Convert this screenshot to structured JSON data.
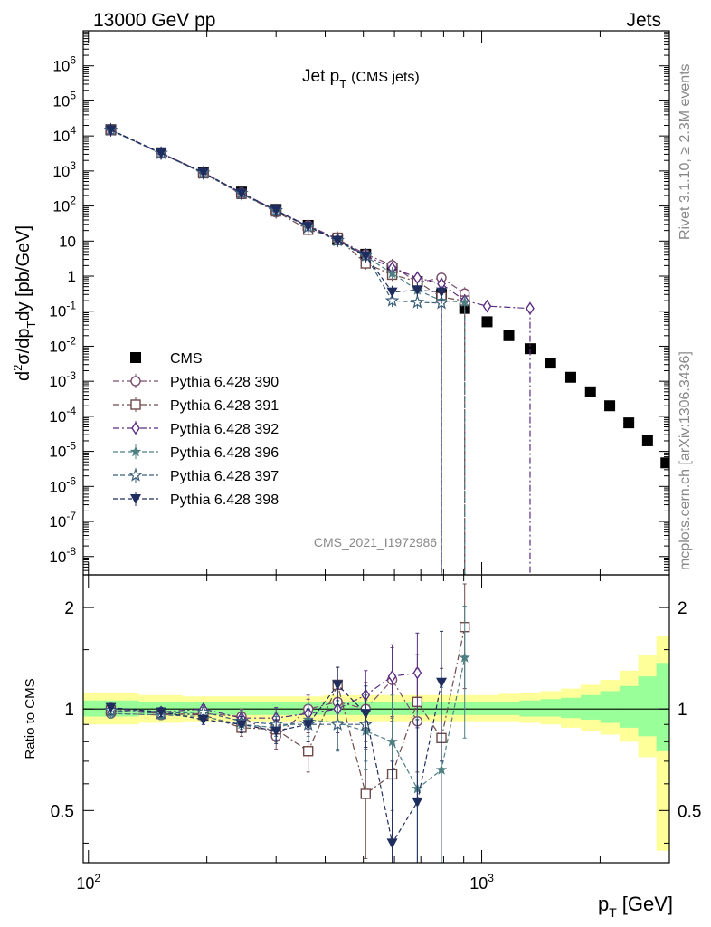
{
  "header": {
    "left": "13000 GeV pp",
    "right": "Jets"
  },
  "side_text": {
    "rivet": "Rivet 3.1.10, ≥ 2.3M events",
    "site": "mcplots.cern.ch [arXiv:1306.3436]"
  },
  "watermark": "CMS_2021_I1972986",
  "chart_data": [
    {
      "type": "scatter",
      "title": "Jet pT (CMS jets)",
      "title_main": "Jet p",
      "title_sub": "T",
      "title_tail": "(CMS jets)",
      "ylabel": "d²σ/dpTdy [pb/GeV]",
      "ylabel_parts": [
        "d",
        "2",
        "σ/dp",
        "T",
        "dy [pb/GeV]"
      ],
      "xlabel": "pT [GeV]",
      "xlabel_parts": [
        "p",
        "T",
        "[GeV]"
      ],
      "xscale": "log",
      "yscale": "log",
      "xlim": [
        97,
        3000
      ],
      "ylim": [
        3e-09,
        10000000.0
      ],
      "y_tick_labels": [
        {
          "v": 1000000.0,
          "base": "10",
          "exp": "6"
        },
        {
          "v": 100000.0,
          "base": "10",
          "exp": "5"
        },
        {
          "v": 10000.0,
          "base": "10",
          "exp": "4"
        },
        {
          "v": 1000.0,
          "base": "10",
          "exp": "3"
        },
        {
          "v": 100.0,
          "base": "10",
          "exp": "2"
        },
        {
          "v": 10,
          "base": "10",
          "exp": ""
        },
        {
          "v": 1,
          "base": "1",
          "exp": ""
        },
        {
          "v": 0.1,
          "base": "10",
          "exp": "-1"
        },
        {
          "v": 0.01,
          "base": "10",
          "exp": "-2"
        },
        {
          "v": 0.001,
          "base": "10",
          "exp": "-3"
        },
        {
          "v": 0.0001,
          "base": "10",
          "exp": "-4"
        },
        {
          "v": 1e-05,
          "base": "10",
          "exp": "-5"
        },
        {
          "v": 1e-06,
          "base": "10",
          "exp": "-6"
        },
        {
          "v": 1e-07,
          "base": "10",
          "exp": "-7"
        },
        {
          "v": 1e-08,
          "base": "10",
          "exp": "-8"
        }
      ],
      "legend_position": "bottom-left",
      "series": [
        {
          "name": "CMS",
          "color": "#000000",
          "marker": "square-filled",
          "x": [
            114,
            153,
            196,
            245,
            300,
            362,
            430,
            507,
            592,
            686,
            790,
            905,
            1032,
            1172,
            1327,
            1497,
            1684,
            1890,
            2116,
            2366,
            2640,
            2941
          ],
          "y": [
            15000,
            3300,
            900,
            250,
            80,
            28,
            11,
            4.2,
            1.7,
            0.7,
            0.3,
            0.12,
            0.05,
            0.02,
            0.0085,
            0.0033,
            0.0013,
            0.0005,
            0.0002,
            6.5e-05,
            2e-05,
            4.7e-06
          ]
        },
        {
          "name": "Pythia 6.428 390",
          "color": "#7a4f6d",
          "marker": "circle-open",
          "dash": "7,3,2,3",
          "x": [
            114,
            153,
            196,
            245,
            300,
            362,
            430,
            507,
            592,
            686,
            790,
            905
          ],
          "y": [
            14500,
            3150,
            880,
            240,
            66,
            28,
            11.5,
            4.2,
            2.05,
            0.65,
            0.9,
            0.32
          ]
        },
        {
          "name": "Pythia 6.428 391",
          "color": "#6e4a4a",
          "marker": "square-open",
          "dash": "7,3,2,3",
          "x": [
            114,
            153,
            196,
            245,
            300,
            362,
            430,
            507,
            592,
            686,
            790,
            905
          ],
          "y": [
            14800,
            3200,
            860,
            220,
            70,
            21,
            12.5,
            2.3,
            1.1,
            0.7,
            0.25,
            0.2
          ]
        },
        {
          "name": "Pythia 6.428 392",
          "color": "#5a2d82",
          "marker": "diamond-open",
          "dash": "7,3,2,3",
          "x": [
            114,
            153,
            196,
            245,
            300,
            362,
            430,
            507,
            592,
            686,
            790,
            905,
            1032,
            1327
          ],
          "y": [
            15000,
            3250,
            900,
            235,
            75,
            27,
            11,
            3.8,
            1.7,
            0.9,
            0.6,
            0.2,
            0.14,
            0.12
          ]
        },
        {
          "name": "Pythia 6.428 396",
          "color": "#4e7f82",
          "marker": "star-filled",
          "dash": "5,3",
          "x": [
            114,
            153,
            196,
            245,
            300,
            362,
            430,
            507,
            592,
            686,
            790,
            905
          ],
          "y": [
            14600,
            3150,
            860,
            225,
            72,
            26,
            10,
            3.6,
            1.2,
            0.4,
            0.2,
            0.18
          ]
        },
        {
          "name": "Pythia 6.428 397",
          "color": "#3b5f7a",
          "marker": "star-open",
          "dash": "5,3",
          "x": [
            114,
            153,
            196,
            245,
            300,
            362,
            430,
            507,
            592,
            686,
            790
          ],
          "y": [
            14800,
            3200,
            880,
            230,
            74,
            25,
            10.5,
            3.9,
            0.2,
            0.18,
            0.17
          ]
        },
        {
          "name": "Pythia 6.428 398",
          "color": "#1f2d5e",
          "marker": "triangle-down-filled",
          "dash": "5,3",
          "x": [
            114,
            153,
            196,
            245,
            300,
            362,
            430,
            507,
            592,
            686,
            790
          ],
          "y": [
            15000,
            3250,
            900,
            235,
            76,
            26,
            10.5,
            3.8,
            0.35,
            0.4,
            0.35
          ]
        }
      ]
    },
    {
      "type": "scatter",
      "ylabel": "Ratio to CMS",
      "xscale": "log",
      "yscale": "log",
      "xlim": [
        97,
        3000
      ],
      "ylim": [
        0.35,
        2.5
      ],
      "y_ticks": [
        0.5,
        1,
        2
      ],
      "y_tick_labels": [
        "0.5",
        "1",
        "2"
      ],
      "x_ticks": [
        100,
        1000
      ],
      "x_tick_labels": [
        {
          "base": "10",
          "exp": "2"
        },
        {
          "base": "10",
          "exp": "3"
        }
      ],
      "uncertainty_band": {
        "x_edges": [
          97,
          134,
          173,
          218,
          270,
          330,
          395,
          467,
          548,
          638,
          738,
          846,
          966,
          1100,
          1248,
          1410,
          1590,
          1786,
          2002,
          2240,
          2500,
          2780,
          3000
        ],
        "outer_low": [
          0.9,
          0.91,
          0.92,
          0.92,
          0.92,
          0.92,
          0.92,
          0.92,
          0.92,
          0.92,
          0.92,
          0.92,
          0.92,
          0.92,
          0.91,
          0.9,
          0.88,
          0.86,
          0.84,
          0.8,
          0.72,
          0.38
        ],
        "outer_high": [
          1.12,
          1.1,
          1.09,
          1.09,
          1.09,
          1.09,
          1.1,
          1.1,
          1.1,
          1.1,
          1.1,
          1.1,
          1.1,
          1.11,
          1.12,
          1.13,
          1.15,
          1.18,
          1.22,
          1.3,
          1.45,
          1.65
        ],
        "inner_low": [
          0.95,
          0.96,
          0.96,
          0.96,
          0.96,
          0.96,
          0.96,
          0.96,
          0.96,
          0.96,
          0.96,
          0.96,
          0.96,
          0.96,
          0.95,
          0.95,
          0.94,
          0.93,
          0.91,
          0.88,
          0.83,
          0.75
        ],
        "inner_high": [
          1.06,
          1.05,
          1.05,
          1.05,
          1.05,
          1.05,
          1.05,
          1.05,
          1.05,
          1.05,
          1.05,
          1.05,
          1.05,
          1.05,
          1.06,
          1.07,
          1.08,
          1.1,
          1.13,
          1.17,
          1.25,
          1.37
        ],
        "outer_color": "#ffff99",
        "inner_color": "#99ff99"
      },
      "series": [
        {
          "name": "Pythia 6.428 390",
          "color": "#7a4f6d",
          "marker": "circle-open",
          "dash": "7,3,2,3",
          "x": [
            114,
            153,
            196,
            245,
            300,
            362,
            430,
            507,
            592,
            686
          ],
          "y": [
            0.97,
            0.96,
            0.97,
            0.95,
            0.83,
            1.0,
            1.05,
            1.0,
            1.22,
            0.92
          ],
          "err": [
            0.03,
            0.03,
            0.03,
            0.05,
            0.07,
            0.1,
            0.15,
            0.2,
            0.3,
            0.4
          ]
        },
        {
          "name": "Pythia 6.428 391",
          "color": "#6e4a4a",
          "marker": "square-open",
          "dash": "7,3,2,3",
          "x": [
            114,
            153,
            196,
            245,
            300,
            362,
            430,
            507,
            592,
            686,
            790,
            905
          ],
          "y": [
            0.99,
            0.97,
            0.96,
            0.88,
            0.87,
            0.75,
            1.18,
            0.56,
            0.64,
            1.05,
            0.82,
            1.75
          ],
          "err": [
            0.03,
            0.03,
            0.03,
            0.05,
            0.07,
            0.1,
            0.15,
            0.2,
            0.3,
            0.4,
            0.5,
            0.6
          ]
        },
        {
          "name": "Pythia 6.428 392",
          "color": "#5a2d82",
          "marker": "diamond-open",
          "dash": "7,3,2,3",
          "x": [
            114,
            153,
            196,
            245,
            300,
            362,
            430,
            507,
            592,
            686
          ],
          "y": [
            1.0,
            0.98,
            1.0,
            0.94,
            0.94,
            0.97,
            1.0,
            1.1,
            1.25,
            1.28
          ],
          "err": [
            0.03,
            0.03,
            0.03,
            0.05,
            0.07,
            0.1,
            0.15,
            0.2,
            0.3,
            0.4
          ]
        },
        {
          "name": "Pythia 6.428 396",
          "color": "#4e7f82",
          "marker": "star-filled",
          "dash": "5,3",
          "x": [
            114,
            153,
            196,
            245,
            300,
            362,
            430,
            507,
            592,
            686,
            790,
            905
          ],
          "y": [
            0.97,
            0.96,
            0.95,
            0.9,
            0.88,
            0.93,
            0.91,
            0.86,
            0.8,
            0.58,
            0.66,
            1.42
          ],
          "err": [
            0.03,
            0.03,
            0.03,
            0.05,
            0.07,
            0.1,
            0.15,
            0.2,
            0.3,
            0.4,
            0.5,
            0.6
          ]
        },
        {
          "name": "Pythia 6.428 397",
          "color": "#3b5f7a",
          "marker": "star-open",
          "dash": "5,3",
          "x": [
            114,
            153,
            196,
            245,
            300,
            362,
            430,
            507
          ],
          "y": [
            0.99,
            0.97,
            0.98,
            0.92,
            0.9,
            0.9,
            0.9,
            0.9
          ],
          "err": [
            0.03,
            0.03,
            0.03,
            0.05,
            0.07,
            0.1,
            0.15,
            0.2
          ]
        },
        {
          "name": "Pythia 6.428 398",
          "color": "#1f2d5e",
          "marker": "triangle-down-filled",
          "dash": "5,3",
          "x": [
            114,
            153,
            196,
            245,
            300,
            362,
            430,
            507,
            592,
            686,
            790
          ],
          "y": [
            1.01,
            0.98,
            0.93,
            0.9,
            0.86,
            0.9,
            1.18,
            0.97,
            0.4,
            0.53,
            1.2
          ],
          "err": [
            0.03,
            0.03,
            0.03,
            0.05,
            0.07,
            0.1,
            0.15,
            0.2,
            0.3,
            0.4,
            0.5
          ]
        }
      ]
    }
  ]
}
